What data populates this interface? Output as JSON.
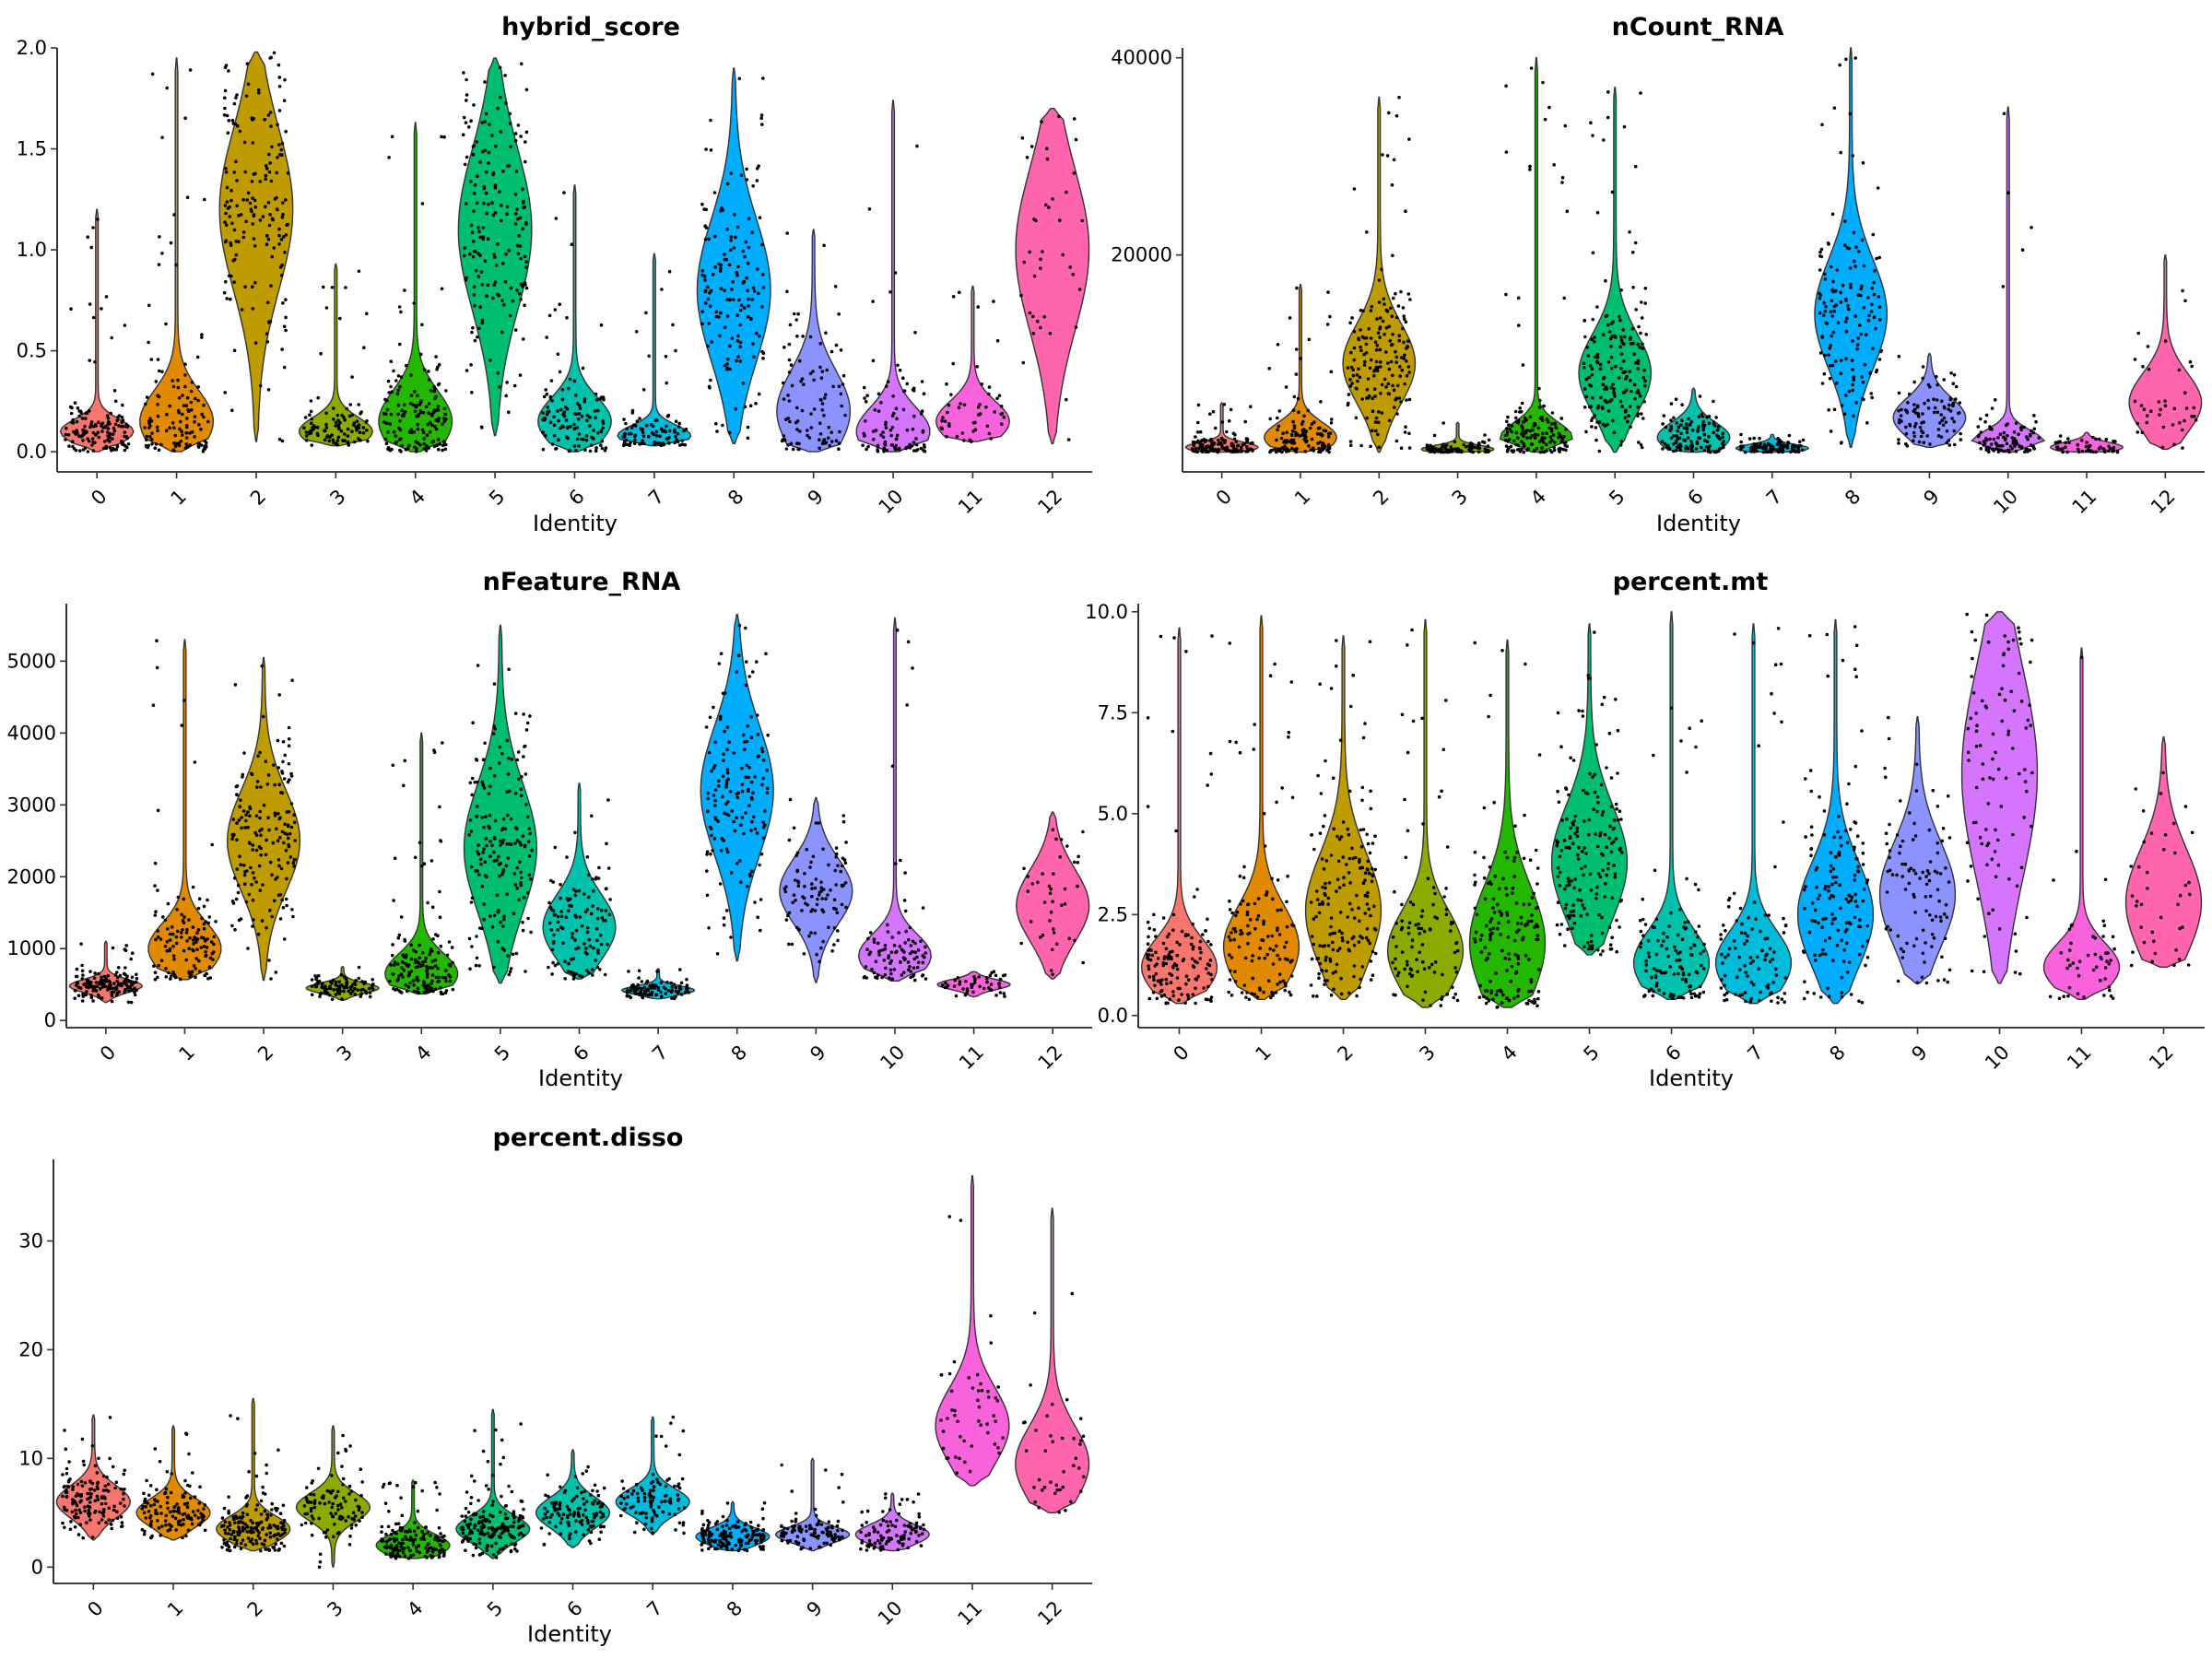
{
  "chart_data": [
    {
      "type": "violin",
      "title": "hybrid_score",
      "xlabel": "Identity",
      "ylabel": "",
      "categories": [
        "0",
        "1",
        "2",
        "3",
        "4",
        "5",
        "6",
        "7",
        "8",
        "9",
        "10",
        "11",
        "12"
      ],
      "ylim": [
        -0.1,
        2.0
      ],
      "yticks": [
        "0.0",
        "0.5",
        "1.0",
        "1.5",
        "2.0"
      ],
      "violins": [
        {
          "min": 0.0,
          "max": 1.2,
          "mode": 0.1,
          "spread": 0.06,
          "n": 150
        },
        {
          "min": 0.0,
          "max": 1.95,
          "mode": 0.15,
          "spread": 0.15,
          "n": 130
        },
        {
          "min": 0.05,
          "max": 1.98,
          "mode": 1.2,
          "spread": 0.4,
          "n": 180
        },
        {
          "min": 0.03,
          "max": 0.93,
          "mode": 0.1,
          "spread": 0.07,
          "n": 100
        },
        {
          "min": 0.0,
          "max": 1.63,
          "mode": 0.15,
          "spread": 0.15,
          "n": 160
        },
        {
          "min": 0.08,
          "max": 1.95,
          "mode": 1.1,
          "spread": 0.4,
          "n": 180
        },
        {
          "min": 0.0,
          "max": 1.32,
          "mode": 0.15,
          "spread": 0.12,
          "n": 120
        },
        {
          "min": 0.03,
          "max": 0.98,
          "mode": 0.08,
          "spread": 0.05,
          "n": 100
        },
        {
          "min": 0.04,
          "max": 1.9,
          "mode": 0.8,
          "spread": 0.35,
          "n": 150
        },
        {
          "min": 0.0,
          "max": 1.1,
          "mode": 0.2,
          "spread": 0.2,
          "n": 100
        },
        {
          "min": 0.0,
          "max": 1.74,
          "mode": 0.1,
          "spread": 0.12,
          "n": 100
        },
        {
          "min": 0.05,
          "max": 0.82,
          "mode": 0.15,
          "spread": 0.1,
          "n": 50
        },
        {
          "min": 0.04,
          "max": 1.7,
          "mode": 1.0,
          "spread": 0.4,
          "n": 40
        }
      ]
    },
    {
      "type": "violin",
      "title": "nCount_RNA",
      "xlabel": "Identity",
      "ylabel": "",
      "categories": [
        "0",
        "1",
        "2",
        "3",
        "4",
        "5",
        "6",
        "7",
        "8",
        "9",
        "10",
        "11",
        "12"
      ],
      "ylim": [
        -2000,
        41000
      ],
      "yticks": [
        "20000",
        "40000"
      ],
      "ytick_values": [
        20000,
        40000
      ],
      "violins": [
        {
          "min": 0,
          "max": 5000,
          "mode": 500,
          "spread": 500,
          "n": 150
        },
        {
          "min": 0,
          "max": 17000,
          "mode": 1500,
          "spread": 1500,
          "n": 130
        },
        {
          "min": 0,
          "max": 36000,
          "mode": 9000,
          "spread": 4000,
          "n": 180
        },
        {
          "min": 0,
          "max": 3000,
          "mode": 300,
          "spread": 400,
          "n": 100
        },
        {
          "min": 0,
          "max": 40000,
          "mode": 1500,
          "spread": 1500,
          "n": 160
        },
        {
          "min": 0,
          "max": 37000,
          "mode": 8000,
          "spread": 4000,
          "n": 180
        },
        {
          "min": 0,
          "max": 6500,
          "mode": 1500,
          "spread": 1500,
          "n": 120
        },
        {
          "min": 0,
          "max": 1800,
          "mode": 400,
          "spread": 400,
          "n": 100
        },
        {
          "min": 500,
          "max": 41000,
          "mode": 14000,
          "spread": 5500,
          "n": 150
        },
        {
          "min": 500,
          "max": 10000,
          "mode": 3500,
          "spread": 2000,
          "n": 100
        },
        {
          "min": 0,
          "max": 35000,
          "mode": 1000,
          "spread": 1200,
          "n": 100
        },
        {
          "min": 0,
          "max": 2000,
          "mode": 500,
          "spread": 500,
          "n": 50
        },
        {
          "min": 300,
          "max": 20000,
          "mode": 5000,
          "spread": 3000,
          "n": 40
        }
      ]
    },
    {
      "type": "violin",
      "title": "nFeature_RNA",
      "xlabel": "Identity",
      "ylabel": "",
      "categories": [
        "0",
        "1",
        "2",
        "3",
        "4",
        "5",
        "6",
        "7",
        "8",
        "9",
        "10",
        "11",
        "12"
      ],
      "ylim": [
        -100,
        5800
      ],
      "yticks": [
        "0",
        "1000",
        "2000",
        "3000",
        "4000",
        "5000"
      ],
      "violins": [
        {
          "min": 250,
          "max": 1100,
          "mode": 480,
          "spread": 90,
          "n": 150
        },
        {
          "min": 570,
          "max": 5300,
          "mode": 1000,
          "spread": 350,
          "n": 130
        },
        {
          "min": 560,
          "max": 5050,
          "mode": 2500,
          "spread": 700,
          "n": 180
        },
        {
          "min": 280,
          "max": 750,
          "mode": 450,
          "spread": 70,
          "n": 100
        },
        {
          "min": 370,
          "max": 4000,
          "mode": 650,
          "spread": 280,
          "n": 160
        },
        {
          "min": 520,
          "max": 5500,
          "mode": 2400,
          "spread": 900,
          "n": 180
        },
        {
          "min": 580,
          "max": 3300,
          "mode": 1300,
          "spread": 450,
          "n": 120
        },
        {
          "min": 300,
          "max": 720,
          "mode": 420,
          "spread": 60,
          "n": 100
        },
        {
          "min": 830,
          "max": 5650,
          "mode": 3200,
          "spread": 900,
          "n": 150
        },
        {
          "min": 530,
          "max": 3100,
          "mode": 1800,
          "spread": 450,
          "n": 100
        },
        {
          "min": 550,
          "max": 5600,
          "mode": 900,
          "spread": 300,
          "n": 100
        },
        {
          "min": 330,
          "max": 680,
          "mode": 500,
          "spread": 70,
          "n": 50
        },
        {
          "min": 580,
          "max": 2900,
          "mode": 1600,
          "spread": 500,
          "n": 40
        }
      ]
    },
    {
      "type": "violin",
      "title": "percent.mt",
      "xlabel": "Identity",
      "ylabel": "",
      "categories": [
        "0",
        "1",
        "2",
        "3",
        "4",
        "5",
        "6",
        "7",
        "8",
        "9",
        "10",
        "11",
        "12"
      ],
      "ylim": [
        -0.3,
        10.2
      ],
      "yticks": [
        "0.0",
        "2.5",
        "5.0",
        "7.5",
        "10.0"
      ],
      "violins": [
        {
          "min": 0.3,
          "max": 9.6,
          "mode": 1.2,
          "spread": 0.7,
          "n": 150
        },
        {
          "min": 0.4,
          "max": 9.9,
          "mode": 1.7,
          "spread": 1.0,
          "n": 130
        },
        {
          "min": 0.4,
          "max": 9.4,
          "mode": 2.6,
          "spread": 1.4,
          "n": 180
        },
        {
          "min": 0.2,
          "max": 9.8,
          "mode": 1.6,
          "spread": 1.0,
          "n": 100
        },
        {
          "min": 0.2,
          "max": 9.3,
          "mode": 1.8,
          "spread": 1.4,
          "n": 160
        },
        {
          "min": 1.5,
          "max": 9.7,
          "mode": 3.8,
          "spread": 1.4,
          "n": 180
        },
        {
          "min": 0.4,
          "max": 10.0,
          "mode": 1.3,
          "spread": 0.8,
          "n": 120
        },
        {
          "min": 0.3,
          "max": 9.7,
          "mode": 1.3,
          "spread": 0.8,
          "n": 100
        },
        {
          "min": 0.3,
          "max": 9.8,
          "mode": 2.5,
          "spread": 1.3,
          "n": 150
        },
        {
          "min": 0.8,
          "max": 7.4,
          "mode": 3.0,
          "spread": 1.3,
          "n": 100
        },
        {
          "min": 0.8,
          "max": 10.0,
          "mode": 6.0,
          "spread": 2.6,
          "n": 100
        },
        {
          "min": 0.4,
          "max": 9.1,
          "mode": 1.2,
          "spread": 0.6,
          "n": 50
        },
        {
          "min": 1.2,
          "max": 6.9,
          "mode": 2.8,
          "spread": 1.3,
          "n": 40
        }
      ]
    },
    {
      "type": "violin",
      "title": "percent.disso",
      "xlabel": "Identity",
      "ylabel": "",
      "categories": [
        "0",
        "1",
        "2",
        "3",
        "4",
        "5",
        "6",
        "7",
        "8",
        "9",
        "10",
        "11",
        "12"
      ],
      "ylim": [
        -1.5,
        37.5
      ],
      "yticks": [
        "0",
        "10",
        "20",
        "30"
      ],
      "violins": [
        {
          "min": 2.5,
          "max": 14,
          "mode": 6,
          "spread": 1.5,
          "n": 150
        },
        {
          "min": 2.5,
          "max": 13,
          "mode": 5,
          "spread": 1.3,
          "n": 130
        },
        {
          "min": 1.5,
          "max": 15.5,
          "mode": 3.5,
          "spread": 1.2,
          "n": 180
        },
        {
          "min": 0.0,
          "max": 13,
          "mode": 5.5,
          "spread": 1.3,
          "n": 100
        },
        {
          "min": 0.8,
          "max": 8,
          "mode": 2,
          "spread": 1.0,
          "n": 160
        },
        {
          "min": 0.8,
          "max": 14.5,
          "mode": 3.5,
          "spread": 1.2,
          "n": 180
        },
        {
          "min": 1.8,
          "max": 10.8,
          "mode": 5,
          "spread": 1.4,
          "n": 120
        },
        {
          "min": 3.0,
          "max": 13.8,
          "mode": 6,
          "spread": 1.2,
          "n": 100
        },
        {
          "min": 1.5,
          "max": 6,
          "mode": 2.8,
          "spread": 0.8,
          "n": 150
        },
        {
          "min": 1.5,
          "max": 10,
          "mode": 3,
          "spread": 0.7,
          "n": 100
        },
        {
          "min": 1.5,
          "max": 6.8,
          "mode": 3,
          "spread": 0.9,
          "n": 100
        },
        {
          "min": 7.5,
          "max": 36,
          "mode": 13,
          "spread": 3.5,
          "n": 50
        },
        {
          "min": 5,
          "max": 33,
          "mode": 9.5,
          "spread": 3.5,
          "n": 40
        }
      ]
    }
  ],
  "colors": [
    "#F8766D",
    "#E18A00",
    "#BE9C00",
    "#8CAB00",
    "#24B700",
    "#00BE70",
    "#00C1AB",
    "#00BBDA",
    "#00ACFC",
    "#8B93FF",
    "#D575FE",
    "#F962DD",
    "#FF65AC"
  ]
}
